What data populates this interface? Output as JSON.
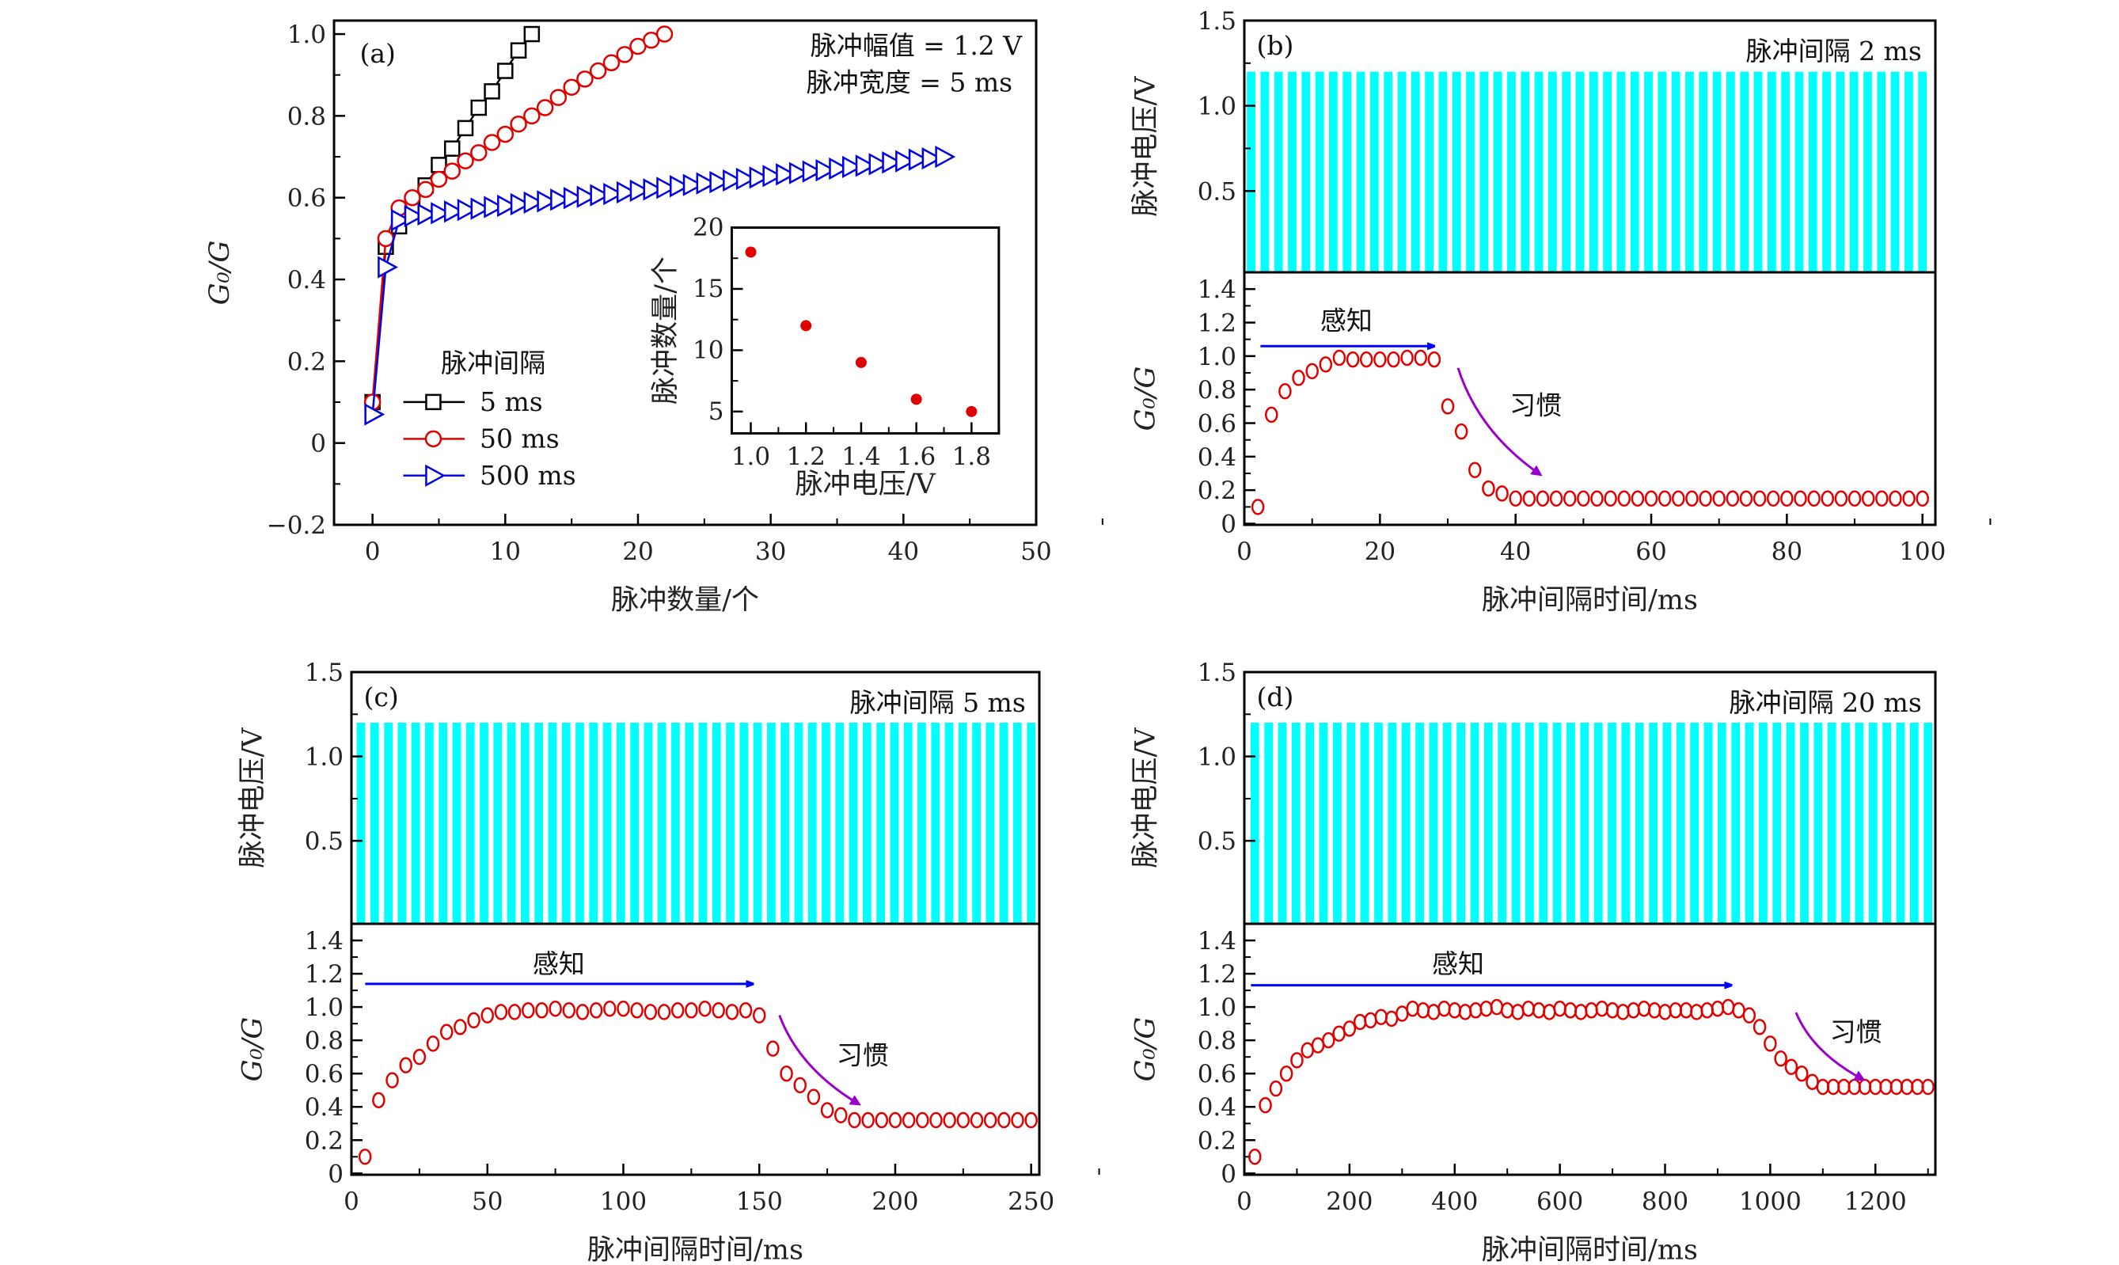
{
  "colors": {
    "square": "#000000",
    "circle": "#e00000",
    "triangle": "#0000e0",
    "pulse": "#00ffff",
    "perception": "#0000ff",
    "habituation": "#9900cc",
    "marker": "#e00000"
  },
  "chart_data": [
    {
      "panel": "(a)",
      "type": "line",
      "xlabel": "脉冲数量/个",
      "ylabel": "G₀/G",
      "xlim": [
        -2.9,
        50
      ],
      "ylim": [
        -0.2,
        1.033
      ],
      "xticks": [
        "0",
        "10",
        "20",
        "30",
        "40",
        "50"
      ],
      "yticks": [
        "−0.2",
        "0",
        "0.2",
        "0.4",
        "0.6",
        "0.8",
        "1.0"
      ],
      "annotations": [
        "脉冲幅值 = 1.2 V",
        "脉冲宽度 = 5 ms"
      ],
      "legend_title": "脉冲间隔",
      "legend_position": "bottom-left",
      "series": [
        {
          "name": "5 ms",
          "marker": "square",
          "x": [
            0,
            1,
            2,
            3,
            4,
            5,
            6,
            7,
            8,
            9,
            10,
            11,
            12
          ],
          "y": [
            0.1,
            0.48,
            0.53,
            0.58,
            0.63,
            0.68,
            0.72,
            0.77,
            0.82,
            0.86,
            0.91,
            0.96,
            1.0
          ]
        },
        {
          "name": "50 ms",
          "marker": "circle",
          "x": [
            0,
            1,
            2,
            3,
            4,
            5,
            6,
            7,
            8,
            9,
            10,
            11,
            12,
            13,
            14,
            15,
            16,
            17,
            18,
            19,
            20,
            21,
            22
          ],
          "y": [
            0.1,
            0.5,
            0.575,
            0.6,
            0.62,
            0.645,
            0.665,
            0.69,
            0.71,
            0.735,
            0.755,
            0.78,
            0.8,
            0.82,
            0.845,
            0.87,
            0.89,
            0.91,
            0.93,
            0.95,
            0.97,
            0.985,
            1.0
          ]
        },
        {
          "name": "500 ms",
          "marker": "triangle-right",
          "x": [
            0,
            1,
            2,
            3,
            4,
            5,
            6,
            7,
            8,
            9,
            10,
            11,
            12,
            13,
            14,
            15,
            16,
            17,
            18,
            19,
            20,
            21,
            22,
            23,
            24,
            25,
            26,
            27,
            28,
            29,
            30,
            31,
            32,
            33,
            34,
            35,
            36,
            37,
            38,
            39,
            40,
            41,
            42,
            43
          ],
          "y": [
            0.07,
            0.43,
            0.545,
            0.555,
            0.559,
            0.562,
            0.566,
            0.57,
            0.573,
            0.577,
            0.58,
            0.584,
            0.588,
            0.591,
            0.595,
            0.599,
            0.602,
            0.606,
            0.609,
            0.613,
            0.617,
            0.62,
            0.624,
            0.628,
            0.631,
            0.635,
            0.638,
            0.642,
            0.646,
            0.649,
            0.653,
            0.657,
            0.66,
            0.664,
            0.667,
            0.671,
            0.675,
            0.678,
            0.682,
            0.686,
            0.689,
            0.693,
            0.696,
            0.7
          ]
        }
      ],
      "inset": {
        "type": "scatter",
        "xlabel": "脉冲电压/V",
        "ylabel": "脉冲数量/个",
        "xlim": [
          0.931,
          1.899
        ],
        "ylim": [
          3.22,
          20
        ],
        "xticks": [
          "1.0",
          "1.2",
          "1.4",
          "1.6",
          "1.8"
        ],
        "yticks": [
          "5",
          "10",
          "15",
          "20"
        ],
        "x": [
          1.0,
          1.2,
          1.4,
          1.6,
          1.8
        ],
        "y": [
          18,
          12,
          9,
          6,
          5
        ]
      }
    },
    {
      "panel": "(b)",
      "title": "脉冲间隔 2 ms",
      "xlabel": "脉冲间隔时间/ms",
      "xlim": [
        0,
        101.9
      ],
      "xticks": [
        "0",
        "20",
        "40",
        "60",
        "80",
        "100"
      ],
      "pulse": {
        "type": "bar",
        "ylabel": "脉冲电压/V",
        "ylim": [
          0.023,
          1.5
        ],
        "yticks": [
          "0.5",
          "1.0",
          "1.5"
        ],
        "pulse_count": 50,
        "amplitude": 1.2,
        "x_start": 1,
        "x_end": 100
      },
      "response": {
        "type": "scatter",
        "ylabel": "G₀/G",
        "ylim": [
          -0.007,
          1.5
        ],
        "yticks": [
          "0",
          "0.2",
          "0.4",
          "0.6",
          "0.8",
          "1.0",
          "1.2",
          "1.4"
        ],
        "x": [
          2,
          4,
          6,
          8,
          10,
          12,
          14,
          16,
          18,
          20,
          22,
          24,
          26,
          28,
          30,
          32,
          34,
          36,
          38,
          40,
          42,
          44,
          46,
          48,
          50,
          52,
          54,
          56,
          58,
          60,
          62,
          64,
          66,
          68,
          70,
          72,
          74,
          76,
          78,
          80,
          82,
          84,
          86,
          88,
          90,
          92,
          94,
          96,
          98,
          100
        ],
        "y": [
          0.1,
          0.65,
          0.79,
          0.87,
          0.91,
          0.95,
          0.99,
          0.98,
          0.98,
          0.98,
          0.98,
          0.99,
          0.99,
          0.98,
          0.7,
          0.55,
          0.32,
          0.21,
          0.18,
          0.15,
          0.15,
          0.15,
          0.15,
          0.15,
          0.15,
          0.15,
          0.15,
          0.15,
          0.15,
          0.15,
          0.15,
          0.15,
          0.15,
          0.15,
          0.15,
          0.15,
          0.15,
          0.15,
          0.15,
          0.15,
          0.15,
          0.15,
          0.15,
          0.15,
          0.15,
          0.15,
          0.15,
          0.15,
          0.15,
          0.15
        ]
      },
      "annotations": {
        "perception": "感知",
        "habituation": "习惯"
      }
    },
    {
      "panel": "(c)",
      "title": "脉冲间隔 5 ms",
      "xlabel": "脉冲间隔时间/ms",
      "xlim": [
        0,
        253
      ],
      "xticks": [
        "0",
        "50",
        "100",
        "150",
        "200",
        "250"
      ],
      "pulse": {
        "type": "bar",
        "ylabel": "脉冲电压/V",
        "ylim": [
          0.008,
          1.5
        ],
        "yticks": [
          "0.5",
          "1.0",
          "1.5"
        ],
        "pulse_count": 50,
        "amplitude": 1.2,
        "x_start": 3.5,
        "x_end": 250
      },
      "response": {
        "type": "scatter",
        "ylabel": "G₀/G",
        "ylim": [
          -0.008,
          1.5
        ],
        "yticks": [
          "0",
          "0.2",
          "0.4",
          "0.6",
          "0.8",
          "1.0",
          "1.2",
          "1.4"
        ],
        "x": [
          5,
          10,
          15,
          20,
          25,
          30,
          35,
          40,
          45,
          50,
          55,
          60,
          65,
          70,
          75,
          80,
          85,
          90,
          95,
          100,
          105,
          110,
          115,
          120,
          125,
          130,
          135,
          140,
          145,
          150,
          155,
          160,
          165,
          170,
          175,
          180,
          185,
          190,
          195,
          200,
          205,
          210,
          215,
          220,
          225,
          230,
          235,
          240,
          245,
          250
        ],
        "y": [
          0.1,
          0.44,
          0.56,
          0.65,
          0.7,
          0.78,
          0.85,
          0.88,
          0.92,
          0.95,
          0.97,
          0.97,
          0.98,
          0.98,
          0.99,
          0.98,
          0.97,
          0.98,
          0.99,
          0.99,
          0.98,
          0.97,
          0.97,
          0.98,
          0.98,
          0.99,
          0.98,
          0.97,
          0.98,
          0.95,
          0.75,
          0.6,
          0.53,
          0.46,
          0.38,
          0.35,
          0.32,
          0.32,
          0.32,
          0.32,
          0.32,
          0.32,
          0.32,
          0.32,
          0.32,
          0.32,
          0.32,
          0.32,
          0.32,
          0.32
        ]
      },
      "annotations": {
        "perception": "感知",
        "habituation": "习惯"
      }
    },
    {
      "panel": "(d)",
      "title": "脉冲间隔 20 ms",
      "xlabel": "脉冲间隔时间/ms",
      "xlim": [
        0,
        1314
      ],
      "xticks": [
        "0",
        "200",
        "400",
        "600",
        "800",
        "1000",
        "1200"
      ],
      "pulse": {
        "type": "bar",
        "ylabel": "脉冲电压/V",
        "ylim": [
          0.008,
          1.5
        ],
        "yticks": [
          "0.5",
          "1.0",
          "1.5"
        ],
        "pulse_count": 50,
        "amplitude": 1.2,
        "x_start": 20,
        "x_end": 1300
      },
      "response": {
        "type": "scatter",
        "ylabel": "G₀/G",
        "ylim": [
          -0.008,
          1.5
        ],
        "yticks": [
          "0",
          "0.2",
          "0.4",
          "0.6",
          "0.8",
          "1.0",
          "1.2",
          "1.4"
        ],
        "x": [
          20,
          40,
          60,
          80,
          100,
          120,
          140,
          160,
          180,
          200,
          220,
          240,
          260,
          280,
          300,
          320,
          340,
          360,
          380,
          400,
          420,
          440,
          460,
          480,
          500,
          520,
          540,
          560,
          580,
          600,
          620,
          640,
          660,
          680,
          700,
          720,
          740,
          760,
          780,
          800,
          820,
          840,
          860,
          880,
          900,
          920,
          940,
          960,
          980,
          1000,
          1020,
          1040,
          1060,
          1080,
          1100,
          1120,
          1140,
          1160,
          1180,
          1200,
          1220,
          1240,
          1260,
          1280,
          1300
        ],
        "y": [
          0.1,
          0.41,
          0.51,
          0.6,
          0.68,
          0.74,
          0.77,
          0.8,
          0.84,
          0.87,
          0.91,
          0.92,
          0.94,
          0.93,
          0.96,
          0.99,
          0.98,
          0.97,
          0.99,
          0.98,
          0.97,
          0.98,
          0.99,
          1.0,
          0.98,
          0.97,
          0.99,
          0.98,
          0.97,
          0.99,
          0.98,
          0.97,
          0.98,
          0.99,
          0.98,
          0.97,
          0.98,
          0.99,
          0.98,
          0.97,
          0.98,
          0.98,
          0.97,
          0.98,
          0.99,
          1.0,
          0.98,
          0.95,
          0.88,
          0.78,
          0.69,
          0.64,
          0.6,
          0.55,
          0.52,
          0.52,
          0.52,
          0.52,
          0.52,
          0.52,
          0.52,
          0.52,
          0.52,
          0.52,
          0.52
        ]
      },
      "annotations": {
        "perception": "感知",
        "habituation": "习惯"
      }
    }
  ]
}
